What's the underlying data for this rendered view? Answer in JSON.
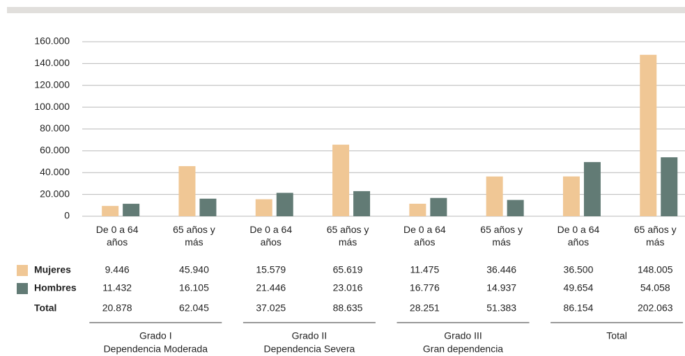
{
  "chart_data": {
    "type": "bar",
    "categories": [
      "De 0 a 64 años",
      "65 años y más",
      "De 0 a 64 años",
      "65 años y más",
      "De 0 a 64 años",
      "65 años y más",
      "De 0 a 64 años",
      "65 años y más"
    ],
    "series": [
      {
        "name": "Mujeres",
        "color": "#f0c795",
        "values": [
          9446,
          45940,
          15579,
          65619,
          11475,
          36446,
          36500,
          148005
        ],
        "value_labels": [
          "9.446",
          "45.940",
          "15.579",
          "65.619",
          "11.475",
          "36.446",
          "36.500",
          "148.005"
        ]
      },
      {
        "name": "Hombres",
        "color": "#627b75",
        "values": [
          11432,
          16105,
          21446,
          23016,
          16776,
          14937,
          49654,
          54058
        ],
        "value_labels": [
          "11.432",
          "16.105",
          "21.446",
          "23.016",
          "16.776",
          "14.937",
          "49.654",
          "54.058"
        ]
      }
    ],
    "total": {
      "name": "Total",
      "values": [
        20878,
        62045,
        37025,
        88635,
        28251,
        51383,
        86154,
        202063
      ],
      "value_labels": [
        "20.878",
        "62.045",
        "37.025",
        "88.635",
        "28.251",
        "51.383",
        "86.154",
        "202.063"
      ]
    },
    "groups": [
      {
        "title": "Grado I",
        "subtitle": "Dependencia Moderada"
      },
      {
        "title": "Grado II",
        "subtitle": "Dependencia Severa"
      },
      {
        "title": "Grado III",
        "subtitle": "Gran dependencia"
      },
      {
        "title": "Total"
      }
    ],
    "ylim": [
      0,
      160000
    ],
    "yticks": [
      0,
      {
        "value": 20000,
        "label": "20.000"
      },
      {
        "value": 40000,
        "label": "40.000"
      },
      {
        "value": 60000,
        "label": "60.000"
      },
      {
        "value": 80000,
        "label": "80.000"
      },
      {
        "value": 100000,
        "label": "100.000"
      },
      {
        "value": 120000,
        "label": "120.000"
      },
      {
        "value": 140000,
        "label": "140.000"
      },
      {
        "value": 160000,
        "label": "160.000"
      }
    ],
    "grid": true
  }
}
